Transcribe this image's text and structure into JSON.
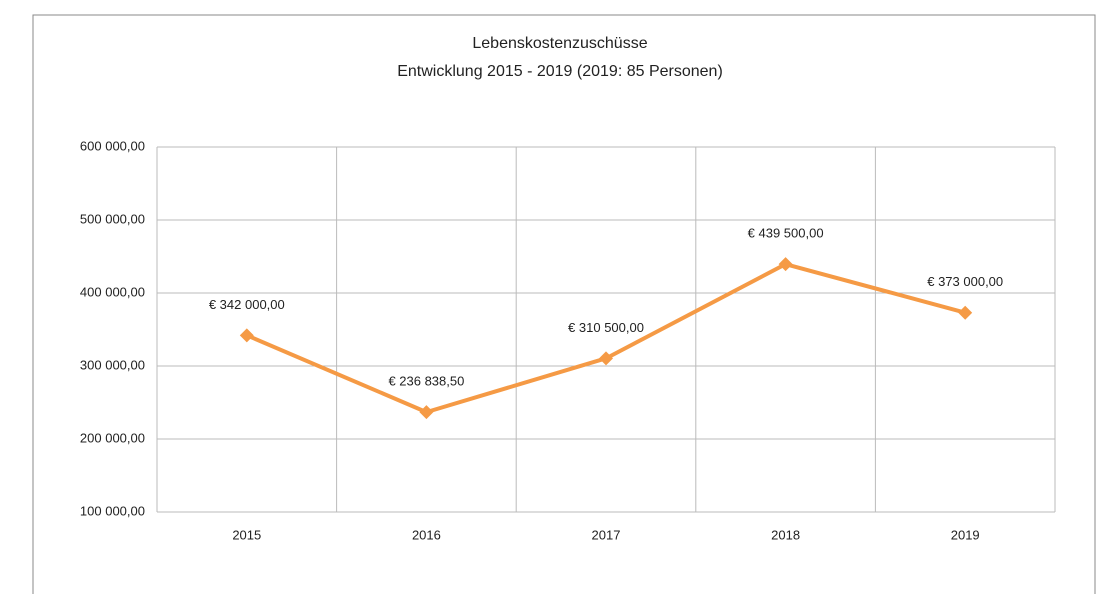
{
  "chart_data": {
    "type": "line",
    "title": "Lebenskostenzuschüsse",
    "subtitle": "Entwicklung 2015 - 2019 (2019: 85 Personen)",
    "categories": [
      "2015",
      "2016",
      "2017",
      "2018",
      "2019"
    ],
    "series": [
      {
        "name": "Lebenskostenzuschüsse",
        "color": "#f59a45",
        "values": [
          342000,
          236838.5,
          310500,
          439500,
          373000
        ],
        "value_labels": [
          "€ 342 000,00",
          "€ 236 838,50",
          "€ 310 500,00",
          "€ 439 500,00",
          "€ 373 000,00"
        ]
      }
    ],
    "ylim": [
      100000,
      600000
    ],
    "yticks": [
      {
        "value": 100000,
        "label": "100 000,00"
      },
      {
        "value": 200000,
        "label": "200 000,00"
      },
      {
        "value": 300000,
        "label": "300 000,00"
      },
      {
        "value": 400000,
        "label": "400 000,00"
      },
      {
        "value": 500000,
        "label": "500 000,00"
      },
      {
        "value": 600000,
        "label": "600 000,00"
      }
    ],
    "grid": true
  }
}
